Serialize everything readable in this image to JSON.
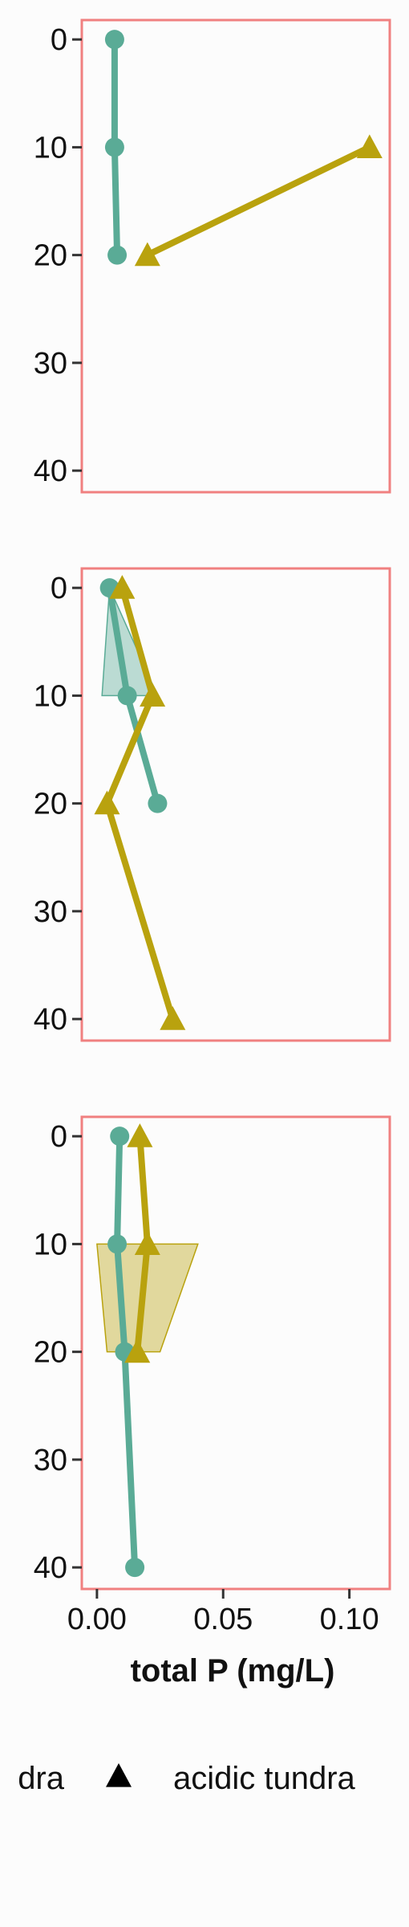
{
  "chart_data": {
    "type": "line",
    "layout": "vertical-facets",
    "x_label": "total P (mg/L)",
    "x_range": [
      -0.006,
      0.116
    ],
    "x_ticks": [
      0.0,
      0.05,
      0.1
    ],
    "x_tick_labels": [
      "0.00",
      "0.05",
      "0.10"
    ],
    "y_range": [
      -1.8,
      42
    ],
    "y_reversed": true,
    "y_ticks": [
      0,
      10,
      20,
      30,
      40
    ],
    "y_tick_labels": [
      "0",
      "10",
      "20",
      "30",
      "40"
    ],
    "panel_border_color": "#f08080",
    "series_colors": {
      "non-acidic tundra": "#5aab96",
      "acidic tundra": "#b9a20e"
    },
    "legend": {
      "position": "bottom",
      "entries": [
        {
          "label": "non-acidic tundra",
          "shape": "circle",
          "visible_text": "dra"
        },
        {
          "label": "acidic tundra",
          "shape": "triangle",
          "visible_text": "acidic tundra"
        }
      ]
    },
    "panels": [
      {
        "series": [
          {
            "name": "non-acidic tundra",
            "marker": "circle",
            "points": [
              {
                "x": 0.007,
                "y": 0
              },
              {
                "x": 0.007,
                "y": 10
              },
              {
                "x": 0.008,
                "y": 20
              }
            ]
          },
          {
            "name": "acidic tundra",
            "marker": "triangle",
            "points": [
              {
                "x": 0.108,
                "y": 10
              },
              {
                "x": 0.02,
                "y": 20
              }
            ]
          }
        ],
        "ribbons": []
      },
      {
        "series": [
          {
            "name": "non-acidic tundra",
            "marker": "circle",
            "points": [
              {
                "x": 0.005,
                "y": 0
              },
              {
                "x": 0.012,
                "y": 10
              },
              {
                "x": 0.024,
                "y": 20
              }
            ]
          },
          {
            "name": "acidic tundra",
            "marker": "triangle",
            "points": [
              {
                "x": 0.01,
                "y": 0
              },
              {
                "x": 0.022,
                "y": 10
              },
              {
                "x": 0.004,
                "y": 20
              },
              {
                "x": 0.03,
                "y": 40
              }
            ]
          }
        ],
        "ribbons": [
          {
            "series": "non-acidic tundra",
            "polygon": [
              [
                0.005,
                0
              ],
              [
                0.024,
                10
              ],
              [
                0.002,
                10
              ]
            ]
          }
        ]
      },
      {
        "series": [
          {
            "name": "non-acidic tundra",
            "marker": "circle",
            "points": [
              {
                "x": 0.009,
                "y": 0
              },
              {
                "x": 0.008,
                "y": 10
              },
              {
                "x": 0.011,
                "y": 20
              },
              {
                "x": 0.015,
                "y": 40
              }
            ]
          },
          {
            "name": "acidic tundra",
            "marker": "triangle",
            "points": [
              {
                "x": 0.017,
                "y": 0
              },
              {
                "x": 0.02,
                "y": 10
              },
              {
                "x": 0.016,
                "y": 20
              }
            ]
          }
        ],
        "ribbons": [
          {
            "series": "acidic tundra",
            "polygon": [
              [
                0.0,
                10
              ],
              [
                0.04,
                10
              ],
              [
                0.025,
                20
              ],
              [
                0.004,
                20
              ]
            ]
          }
        ]
      }
    ]
  }
}
